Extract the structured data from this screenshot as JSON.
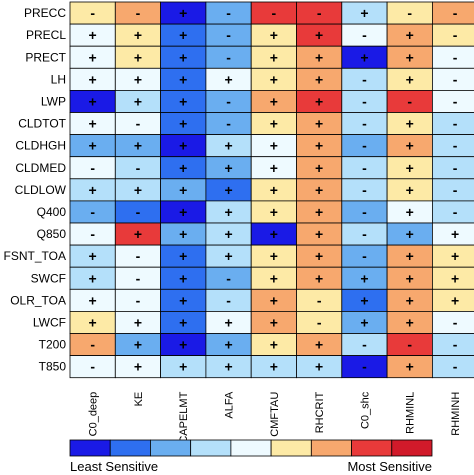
{
  "chart_data": {
    "type": "heatmap",
    "rows": [
      "PRECC",
      "PRECL",
      "PRECT",
      "LH",
      "LWP",
      "CLDTOT",
      "CLDHGH",
      "CLDMED",
      "CLDLOW",
      "Q400",
      "Q850",
      "FSNT_TOA",
      "SWCF",
      "OLR_TOA",
      "LWCF",
      "T200",
      "T850"
    ],
    "columns": [
      "C0_deep",
      "KE",
      "CAPELMT",
      "ALFA",
      "CMFTAU",
      "RHCRIT",
      "C0_shc",
      "RHMINL",
      "RHMINH"
    ],
    "levels": [
      [
        6,
        7,
        1,
        3,
        8,
        8,
        4,
        6,
        7
      ],
      [
        5,
        6,
        2,
        3,
        6,
        8,
        5,
        7,
        6
      ],
      [
        5,
        6,
        2,
        3,
        6,
        7,
        1,
        7,
        5
      ],
      [
        5,
        5,
        2,
        5,
        6,
        7,
        4,
        6,
        5
      ],
      [
        1,
        4,
        2,
        3,
        7,
        8,
        4,
        8,
        5
      ],
      [
        5,
        5,
        2,
        3,
        6,
        7,
        4,
        6,
        4
      ],
      [
        3,
        3,
        1,
        4,
        5,
        7,
        3,
        7,
        4
      ],
      [
        5,
        4,
        2,
        3,
        5,
        7,
        4,
        6,
        4
      ],
      [
        4,
        4,
        3,
        2,
        6,
        7,
        4,
        6,
        4
      ],
      [
        3,
        2,
        1,
        4,
        6,
        7,
        3,
        5,
        4
      ],
      [
        5,
        8,
        3,
        4,
        1,
        7,
        4,
        3,
        5
      ],
      [
        4,
        5,
        2,
        4,
        6,
        7,
        3,
        7,
        6
      ],
      [
        4,
        5,
        2,
        3,
        6,
        7,
        3,
        7,
        6
      ],
      [
        5,
        5,
        2,
        4,
        7,
        6,
        2,
        7,
        6
      ],
      [
        6,
        5,
        2,
        5,
        7,
        6,
        3,
        7,
        5
      ],
      [
        7,
        3,
        1,
        3,
        6,
        7,
        4,
        8,
        4
      ],
      [
        5,
        5,
        4,
        4,
        4,
        4,
        1,
        7,
        4
      ]
    ],
    "signs": [
      [
        "-",
        "-",
        "+",
        "-",
        "-",
        "-",
        "+",
        "-",
        "-"
      ],
      [
        "+",
        "+",
        "+",
        "-",
        "+",
        "+",
        "-",
        "+",
        "-"
      ],
      [
        "+",
        "+",
        "+",
        "-",
        "+",
        "+",
        "+",
        "+",
        "-"
      ],
      [
        "+",
        "+",
        "+",
        "+",
        "+",
        "+",
        "-",
        "+",
        "-"
      ],
      [
        "+",
        "+",
        "+",
        "-",
        "+",
        "+",
        "-",
        "-",
        "-"
      ],
      [
        "+",
        "-",
        "+",
        "-",
        "+",
        "+",
        "-",
        "+",
        "-"
      ],
      [
        "+",
        "+",
        "+",
        "+",
        "+",
        "+",
        "-",
        "+",
        "-"
      ],
      [
        "-",
        "-",
        "+",
        "+",
        "+",
        "+",
        "-",
        "+",
        "-"
      ],
      [
        "+",
        "+",
        "+",
        "+",
        "+",
        "+",
        "-",
        "+",
        "-"
      ],
      [
        "-",
        "-",
        "+",
        "+",
        "+",
        "+",
        "-",
        "+",
        "-"
      ],
      [
        "-",
        "+",
        "+",
        "+",
        "+",
        "+",
        "-",
        "+",
        "+"
      ],
      [
        "+",
        "-",
        "+",
        "+",
        "+",
        "+",
        "-",
        "+",
        "+"
      ],
      [
        "+",
        "-",
        "+",
        "-",
        "+",
        "+",
        "+",
        "+",
        "+"
      ],
      [
        "+",
        "-",
        "+",
        "-",
        "+",
        "-",
        "+",
        "+",
        "+"
      ],
      [
        "+",
        "+",
        "+",
        "+",
        "+",
        "-",
        "+",
        "+",
        "-"
      ],
      [
        "-",
        "+",
        "+",
        "+",
        "+",
        "+",
        "-",
        "-",
        "-"
      ],
      [
        "-",
        "+",
        "+",
        "+",
        "+",
        "+",
        "-",
        "+",
        "-"
      ]
    ],
    "colorscale": [
      "#1a1ae6",
      "#2e6ff0",
      "#6aaef0",
      "#b4e0fa",
      "#eefaff",
      "#fdeaa6",
      "#f7a86e",
      "#e83a3a",
      "#d11a2a"
    ],
    "legend": {
      "low_label": "Least Sensitive",
      "high_label": "Most Sensitive",
      "placement": "bottom"
    },
    "title": "",
    "xlabel": "",
    "ylabel": ""
  }
}
